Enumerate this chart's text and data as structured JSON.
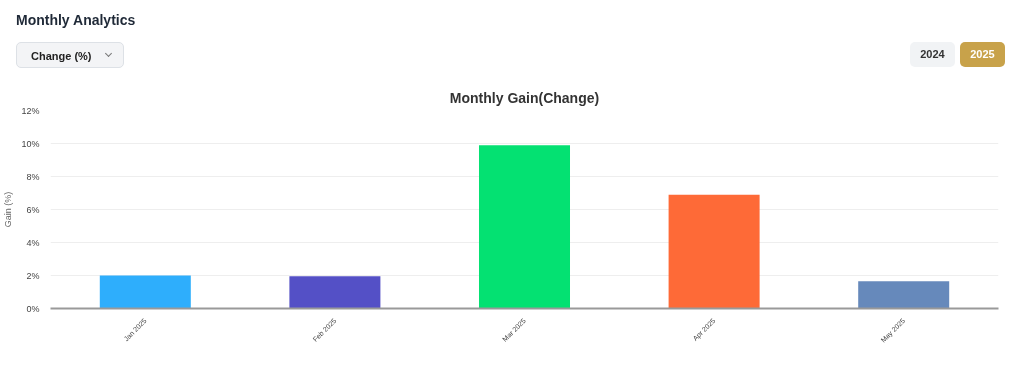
{
  "chart_data": {
    "type": "bar",
    "title": "Monthly Analytics",
    "subtitle": "Monthly Gain(Change)",
    "ylabel": "Gain (%)",
    "annotations": [
      "Change (%)",
      "2024",
      "2025"
    ],
    "categories": [
      "Jan 2025",
      "Feb 2025",
      "Mar 2025",
      "Apr 2025",
      "May 2025"
    ],
    "values": [
      2.0,
      1.95,
      9.9,
      6.9,
      1.65
    ],
    "colors": [
      "#2eaefc",
      "#5450c6",
      "#04e172",
      "#fe6a37",
      "#6689bb"
    ],
    "ylim": [
      0,
      12
    ],
    "yticks": [
      {
        "value": 0,
        "label": "0%"
      },
      {
        "value": 2,
        "label": "2%"
      },
      {
        "value": 4,
        "label": "4%"
      },
      {
        "value": 6,
        "label": "6%"
      },
      {
        "value": 8,
        "label": "8%"
      },
      {
        "value": 10,
        "label": "10%"
      },
      {
        "value": 12,
        "label": "12%"
      }
    ],
    "grid": "y"
  }
}
